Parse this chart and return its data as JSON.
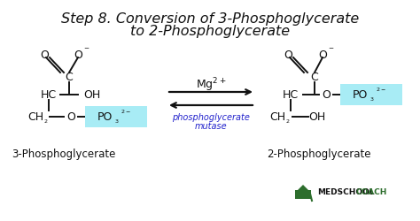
{
  "title_line1": "Step 8. Conversion of 3-Phosphoglycerate",
  "title_line2": "to 2-Phosphoglycerate",
  "title_fontsize": 11.5,
  "title_color": "#111111",
  "bg_color": "#ffffff",
  "arrow_color": "#111111",
  "enzyme_color": "#2222cc",
  "cofactor_color": "#111111",
  "cofactor_text": "Mg$^{2+}$",
  "enzyme_line1": "phosphoglycerate",
  "enzyme_line2": "mutase",
  "label_left": "3-Phosphoglycerate",
  "label_right": "2-Phosphoglycerate",
  "po3_highlight": "#a8ecf5",
  "struct_color": "#111111",
  "logo_text_bold": "MEDSCHOOL",
  "logo_text_green": "COACH",
  "logo_color": "#2d6e2d",
  "struct_fontsize": 9,
  "sub_fontsize": 6.5,
  "label_fontsize": 8.5
}
